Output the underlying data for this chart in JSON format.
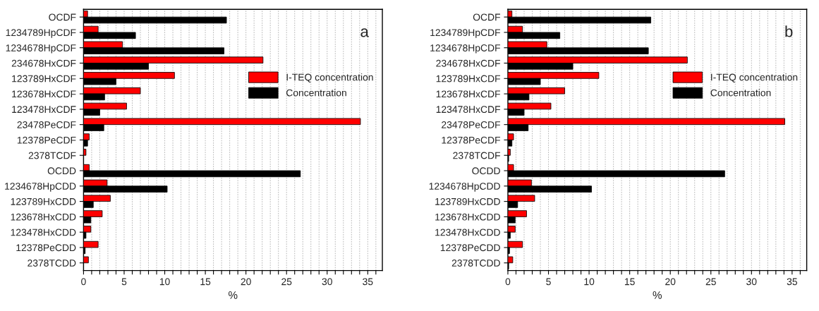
{
  "chart_data": [
    {
      "type": "bar",
      "orientation": "horizontal",
      "xlabel": "%",
      "annotations": [
        "a"
      ],
      "legend": "right",
      "grid": "x",
      "categories": [
        "OCDF",
        "1234789HpCDF",
        "1234678HpCDF",
        "234678HxCDF",
        "123789HxCDF",
        "123678HxCDF",
        "123478HxCDF",
        "23478PeCDF",
        "12378PeCDF",
        "2378TCDF",
        "OCDD",
        "1234678HpCDD",
        "123789HxCDD",
        "123678HxCDD",
        "123478HxCDD",
        "12378PeCDD",
        "2378TCDD"
      ],
      "series": [
        {
          "name": "I-TEQ concentration",
          "color": "#ff0000",
          "values": [
            0.5,
            1.8,
            4.8,
            22.1,
            11.2,
            7.0,
            5.3,
            34.1,
            0.7,
            0.3,
            0.7,
            2.9,
            3.3,
            2.3,
            0.9,
            1.8,
            0.6
          ]
        },
        {
          "name": "Concentration",
          "color": "#000000",
          "values": [
            17.6,
            6.4,
            17.3,
            8.0,
            4.0,
            2.6,
            2.0,
            2.5,
            0.5,
            null,
            26.7,
            10.3,
            1.2,
            0.9,
            0.3,
            0.2,
            null
          ]
        }
      ],
      "xlim": [
        0,
        36.8
      ],
      "xticks": [
        0,
        {
          "value": 1,
          "label": null
        },
        {
          "value": 2,
          "label": null
        },
        {
          "value": 3,
          "label": null
        },
        {
          "value": 4,
          "label": null
        },
        5,
        {
          "value": 6,
          "label": null
        },
        {
          "value": 7,
          "label": null
        },
        {
          "value": 8,
          "label": null
        },
        {
          "value": 9,
          "label": null
        },
        10,
        {
          "value": 11,
          "label": null
        },
        {
          "value": 12,
          "label": null
        },
        {
          "value": 13,
          "label": null
        },
        {
          "value": 14,
          "label": null
        },
        15,
        {
          "value": 16,
          "label": null
        },
        {
          "value": 17,
          "label": null
        },
        {
          "value": 18,
          "label": null
        },
        {
          "value": 19,
          "label": null
        },
        20,
        {
          "value": 21,
          "label": null
        },
        {
          "value": 22,
          "label": null
        },
        {
          "value": 23,
          "label": null
        },
        {
          "value": 24,
          "label": null
        },
        25,
        {
          "value": 26,
          "label": null
        },
        {
          "value": 27,
          "label": null
        },
        {
          "value": 28,
          "label": null
        },
        {
          "value": 29,
          "label": null
        },
        30,
        {
          "value": 31,
          "label": null
        },
        {
          "value": 32,
          "label": null
        },
        {
          "value": 33,
          "label": null
        },
        {
          "value": 34,
          "label": null
        },
        35,
        {
          "value": 36,
          "label": null
        }
      ]
    },
    {
      "type": "bar",
      "orientation": "horizontal",
      "xlabel": "%",
      "annotations": [
        "b"
      ],
      "legend": "right",
      "grid": "x",
      "categories": [
        "OCDF",
        "1234789HpCDF",
        "1234678HpCDF",
        "234678HxCDF",
        "123789HxCDF",
        "123678HxCDF",
        "123478HxCDF",
        "23478PeCDF",
        "12378PeCDF",
        "2378TCDF",
        "OCDD",
        "1234678HpCDD",
        "123789HxCDD",
        "123678HxCDD",
        "123478HxCDD",
        "12378PeCDD",
        "2378TCDD"
      ],
      "series": [
        {
          "name": "I-TEQ concentration",
          "color": "#ff0000",
          "values": [
            0.5,
            1.8,
            4.8,
            22.1,
            11.2,
            7.0,
            5.3,
            34.1,
            0.7,
            0.3,
            0.7,
            2.9,
            3.3,
            2.3,
            0.9,
            1.8,
            0.6
          ]
        },
        {
          "name": "Concentration",
          "color": "#000000",
          "values": [
            17.6,
            6.4,
            17.3,
            8.0,
            4.0,
            2.6,
            2.0,
            2.5,
            0.5,
            0.1,
            26.7,
            10.3,
            1.2,
            0.9,
            0.3,
            0.2,
            0.1
          ]
        }
      ],
      "xlim": [
        0,
        36.8
      ],
      "xticks": [
        0,
        {
          "value": 1,
          "label": null
        },
        {
          "value": 2,
          "label": null
        },
        {
          "value": 3,
          "label": null
        },
        {
          "value": 4,
          "label": null
        },
        5,
        {
          "value": 6,
          "label": null
        },
        {
          "value": 7,
          "label": null
        },
        {
          "value": 8,
          "label": null
        },
        {
          "value": 9,
          "label": null
        },
        10,
        {
          "value": 11,
          "label": null
        },
        {
          "value": 12,
          "label": null
        },
        {
          "value": 13,
          "label": null
        },
        {
          "value": 14,
          "label": null
        },
        15,
        {
          "value": 16,
          "label": null
        },
        {
          "value": 17,
          "label": null
        },
        {
          "value": 18,
          "label": null
        },
        {
          "value": 19,
          "label": null
        },
        20,
        {
          "value": 21,
          "label": null
        },
        {
          "value": 22,
          "label": null
        },
        {
          "value": 23,
          "label": null
        },
        {
          "value": 24,
          "label": null
        },
        25,
        {
          "value": 26,
          "label": null
        },
        {
          "value": 27,
          "label": null
        },
        {
          "value": 28,
          "label": null
        },
        {
          "value": 29,
          "label": null
        },
        30,
        {
          "value": 31,
          "label": null
        },
        {
          "value": 32,
          "label": null
        },
        {
          "value": 33,
          "label": null
        },
        {
          "value": 34,
          "label": null
        },
        35,
        {
          "value": 36,
          "label": null
        }
      ]
    }
  ]
}
